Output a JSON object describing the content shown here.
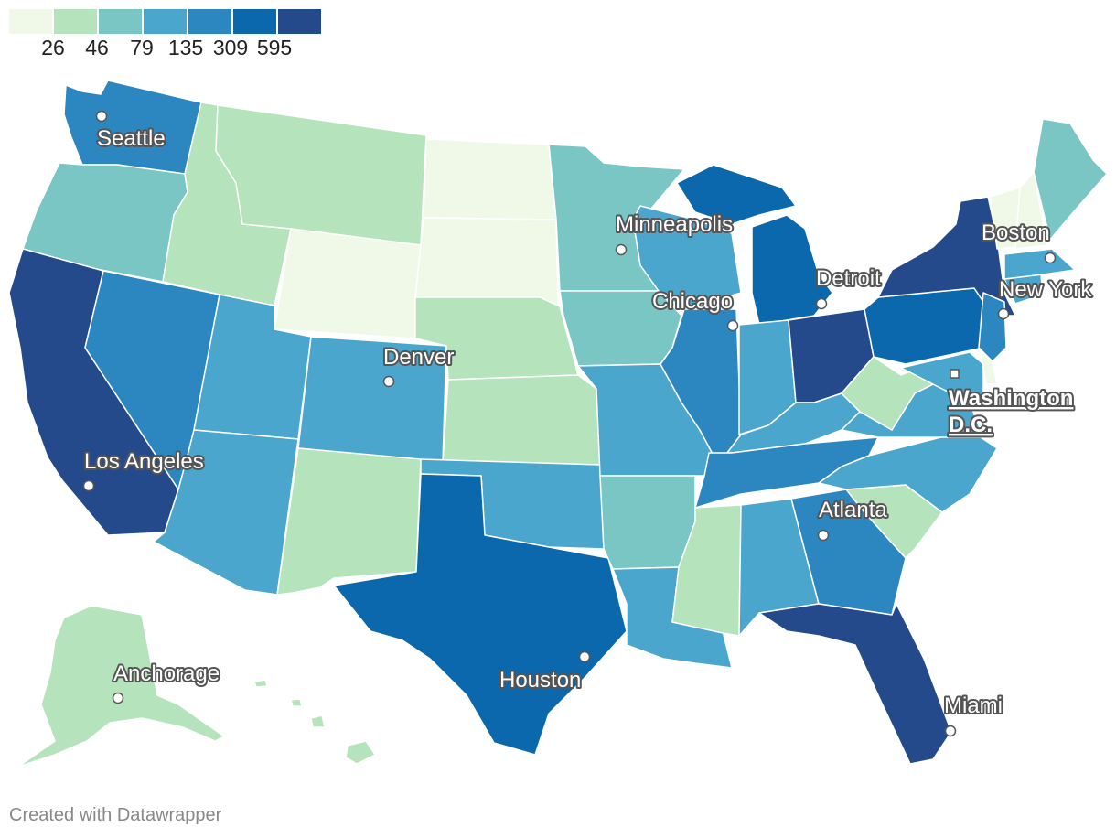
{
  "legend": {
    "colors": [
      "#f0f9e8",
      "#b5e3bc",
      "#79c6c5",
      "#4ba6cd",
      "#2c86c0",
      "#0c68ac",
      "#244a8c"
    ],
    "thresholds": [
      "26",
      "46",
      "79",
      "135",
      "309",
      "595"
    ]
  },
  "map": {
    "type": "choropleth",
    "regions": [
      {
        "name": "Washington",
        "bin": 4
      },
      {
        "name": "Oregon",
        "bin": 2
      },
      {
        "name": "California",
        "bin": 6
      },
      {
        "name": "Nevada",
        "bin": 4
      },
      {
        "name": "Idaho",
        "bin": 1
      },
      {
        "name": "Montana",
        "bin": 1
      },
      {
        "name": "Wyoming",
        "bin": 0
      },
      {
        "name": "Utah",
        "bin": 3
      },
      {
        "name": "Colorado",
        "bin": 3
      },
      {
        "name": "Arizona",
        "bin": 3
      },
      {
        "name": "New Mexico",
        "bin": 1
      },
      {
        "name": "North Dakota",
        "bin": 0
      },
      {
        "name": "South Dakota",
        "bin": 0
      },
      {
        "name": "Nebraska",
        "bin": 1
      },
      {
        "name": "Kansas",
        "bin": 1
      },
      {
        "name": "Oklahoma",
        "bin": 3
      },
      {
        "name": "Texas",
        "bin": 5
      },
      {
        "name": "Minnesota",
        "bin": 2
      },
      {
        "name": "Iowa",
        "bin": 2
      },
      {
        "name": "Missouri",
        "bin": 3
      },
      {
        "name": "Arkansas",
        "bin": 2
      },
      {
        "name": "Louisiana",
        "bin": 3
      },
      {
        "name": "Wisconsin",
        "bin": 3
      },
      {
        "name": "Illinois",
        "bin": 4
      },
      {
        "name": "Michigan",
        "bin": 5
      },
      {
        "name": "Indiana",
        "bin": 3
      },
      {
        "name": "Ohio",
        "bin": 6
      },
      {
        "name": "Kentucky",
        "bin": 3
      },
      {
        "name": "Tennessee",
        "bin": 4
      },
      {
        "name": "Mississippi",
        "bin": 1
      },
      {
        "name": "Alabama",
        "bin": 3
      },
      {
        "name": "Georgia",
        "bin": 4
      },
      {
        "name": "Florida",
        "bin": 6
      },
      {
        "name": "South Carolina",
        "bin": 1
      },
      {
        "name": "North Carolina",
        "bin": 3
      },
      {
        "name": "Virginia",
        "bin": 3
      },
      {
        "name": "West Virginia",
        "bin": 1
      },
      {
        "name": "Pennsylvania",
        "bin": 5
      },
      {
        "name": "New York",
        "bin": 6
      },
      {
        "name": "New Jersey",
        "bin": 4
      },
      {
        "name": "Maryland",
        "bin": 3
      },
      {
        "name": "Delaware",
        "bin": 0
      },
      {
        "name": "Connecticut",
        "bin": 3
      },
      {
        "name": "Massachusetts",
        "bin": 3
      },
      {
        "name": "Vermont",
        "bin": 0
      },
      {
        "name": "New Hampshire",
        "bin": 0
      },
      {
        "name": "Maine",
        "bin": 2
      },
      {
        "name": "Alaska",
        "bin": 1
      },
      {
        "name": "Hawaii",
        "bin": 1
      }
    ],
    "cities": [
      "Seattle",
      "Minneapolis",
      "Boston",
      "Detroit",
      "Chicago",
      "New York",
      "Denver",
      "Washington D.C.",
      "Los Angeles",
      "Atlanta",
      "Houston",
      "Anchorage",
      "Miami"
    ]
  },
  "credit": "Created with Datawrapper"
}
